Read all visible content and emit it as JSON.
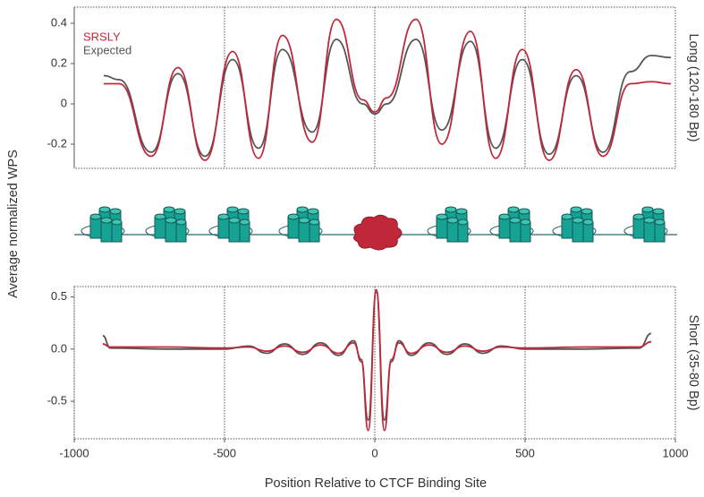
{
  "y_label": "Average normalized WPS",
  "x_label": "Position Relative to CTCF Binding Site",
  "chart_data": [
    {
      "type": "line",
      "side_label": "Long (120-180 Bp)",
      "x": [
        -902,
        -850,
        -744,
        -655,
        -565,
        -473,
        -387,
        -307,
        -208,
        -128,
        -40,
        0,
        40,
        137,
        223,
        318,
        402,
        491,
        580,
        670,
        759,
        850,
        920,
        985
      ],
      "series": [
        {
          "name": "SRSLY",
          "color": "#c0283a",
          "values": [
            0.1,
            0.1,
            -0.26,
            0.18,
            -0.28,
            0.26,
            -0.27,
            0.34,
            -0.19,
            0.42,
            0.02,
            -0.04,
            0.03,
            0.42,
            -0.2,
            0.36,
            -0.27,
            0.27,
            -0.28,
            0.17,
            -0.26,
            0.1,
            0.11,
            0.1
          ]
        },
        {
          "name": "Expected",
          "color": "#555555",
          "values": [
            0.14,
            0.12,
            -0.24,
            0.15,
            -0.26,
            0.22,
            -0.22,
            0.27,
            -0.14,
            0.32,
            0.0,
            -0.05,
            0.0,
            0.32,
            -0.13,
            0.31,
            -0.22,
            0.22,
            -0.25,
            0.14,
            -0.24,
            0.16,
            0.24,
            0.23
          ]
        }
      ],
      "xlim": [
        -1000,
        1000
      ],
      "xticks": [
        -1000,
        -500,
        0,
        500,
        1000
      ],
      "xtick_labels": false,
      "ylim": [
        -0.32,
        0.48
      ],
      "yticks": [
        0.4,
        0.2,
        0,
        -0.2
      ],
      "grid": "x",
      "legend": "upper left"
    },
    {
      "type": "line",
      "side_label": "Short (35-80 Bp)",
      "x": [
        -905,
        -880,
        -700,
        -500,
        -420,
        -360,
        -300,
        -240,
        -180,
        -120,
        -70,
        -45,
        -22,
        5,
        32,
        55,
        80,
        120,
        180,
        240,
        300,
        360,
        420,
        500,
        700,
        880,
        920
      ],
      "series": [
        {
          "name": "SRSLY",
          "color": "#c0283a",
          "values": [
            0.05,
            0.02,
            0.02,
            0.01,
            0.02,
            -0.02,
            0.03,
            -0.03,
            0.04,
            -0.04,
            0.06,
            -0.1,
            -0.78,
            0.57,
            -0.78,
            -0.1,
            0.06,
            -0.04,
            0.04,
            -0.03,
            0.03,
            -0.02,
            0.02,
            0.01,
            0.02,
            0.02,
            0.07
          ]
        },
        {
          "name": "Expected",
          "color": "#555555",
          "values": [
            0.13,
            0.01,
            0.0,
            0.0,
            0.03,
            -0.04,
            0.05,
            -0.05,
            0.06,
            -0.06,
            0.08,
            -0.12,
            -0.68,
            0.55,
            -0.68,
            -0.12,
            0.08,
            -0.06,
            0.06,
            -0.05,
            0.05,
            -0.04,
            0.03,
            0.0,
            0.0,
            0.01,
            0.15
          ]
        }
      ],
      "xlim": [
        -1000,
        1000
      ],
      "xticks": [
        -1000,
        -500,
        0,
        500,
        1000
      ],
      "xtick_labels": true,
      "ylim": [
        -0.86,
        0.6
      ],
      "yticks": [
        {
          "value": 0.5,
          "label": "0.5"
        },
        {
          "value": 0,
          "label": "0.0"
        },
        {
          "value": -0.5,
          "label": "-0.5"
        }
      ],
      "grid": "x",
      "legend": "none"
    }
  ]
}
